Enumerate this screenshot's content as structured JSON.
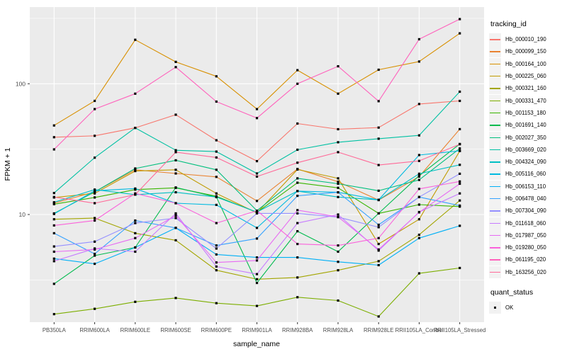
{
  "chart_data": {
    "type": "line",
    "title": "",
    "xlabel": "sample_name",
    "ylabel": "FPKM + 1",
    "y_scale": "log10",
    "y_major_ticks": [
      {
        "label": "100",
        "value": 100
      },
      {
        "label": "10",
        "value": 10
      }
    ],
    "y_minor_ticks": [
      316.2,
      31.62,
      3.162
    ],
    "grid": "on",
    "legend_position": "right",
    "panel_background": "#EBEBEB",
    "gridline_color": "#FFFFFF",
    "marker_color": "#000000",
    "categories": [
      "PB350LA",
      "RRIM600LA",
      "RRIM600LE",
      "RRIM600SE",
      "RRIM600PE",
      "RRIM901LA",
      "RRIM928BA",
      "RRIM928LA",
      "RRIM928LE",
      "RRII105LA_Control",
      "RRII105LA_Stressed"
    ],
    "legend_title": "tracking_id",
    "legend2_title": "quant_status",
    "quant_status_label": "OK",
    "series": [
      {
        "name": "Hb_000010_190",
        "color": "#F8766D",
        "values": [
          39,
          40,
          46,
          58,
          37,
          25.6,
          49.6,
          44.9,
          46.2,
          70,
          74
        ]
      },
      {
        "name": "Hb_000099_150",
        "color": "#EA8331",
        "values": [
          12.2,
          14.9,
          22,
          20.6,
          19.4,
          12.7,
          22.3,
          17.8,
          12.9,
          19.5,
          45
        ]
      },
      {
        "name": "Hb_000164_100",
        "color": "#D89000",
        "values": [
          48,
          74,
          217,
          147,
          114,
          64,
          127,
          84,
          128,
          148,
          243
        ]
      },
      {
        "name": "Hb_000225_060",
        "color": "#C09B00",
        "values": [
          13.5,
          14.5,
          21.5,
          22,
          14.5,
          10.3,
          22.1,
          18.9,
          5.95,
          9.2,
          30.6
        ]
      },
      {
        "name": "Hb_000321_160",
        "color": "#A3A500",
        "values": [
          9.2,
          9.4,
          7.2,
          6.35,
          3.75,
          3.2,
          3.3,
          3.75,
          4.4,
          7.0,
          12.8
        ]
      },
      {
        "name": "Hb_000331_470",
        "color": "#7CAE00",
        "values": [
          1.73,
          1.9,
          2.15,
          2.3,
          2.1,
          2.0,
          2.33,
          2.2,
          1.66,
          3.55,
          3.9
        ]
      },
      {
        "name": "Hb_001153_180",
        "color": "#39B600",
        "values": [
          12.0,
          13.5,
          15.5,
          16,
          13.8,
          10.4,
          17.5,
          16,
          10.2,
          11.9,
          11.5
        ]
      },
      {
        "name": "Hb_001691_140",
        "color": "#00BB4E",
        "values": [
          2.95,
          4.85,
          5.6,
          16.1,
          13.6,
          3.0,
          7.45,
          5.2,
          10.2,
          19.8,
          34.6
        ]
      },
      {
        "name": "Hb_002027_350",
        "color": "#00BF7D",
        "values": [
          10.2,
          14.9,
          22.5,
          26,
          22,
          10.7,
          18.9,
          17.2,
          15.2,
          18.4,
          32
        ]
      },
      {
        "name": "Hb_003669_020",
        "color": "#00C1A3",
        "values": [
          14.6,
          27.2,
          46,
          31,
          30.3,
          20.6,
          31.3,
          35.7,
          38,
          40.3,
          87
        ]
      },
      {
        "name": "Hb_004324_090",
        "color": "#00BFC4",
        "values": [
          12.4,
          15.5,
          14.2,
          14.8,
          13.6,
          10.45,
          15.1,
          13.6,
          12.95,
          20.5,
          24
        ]
      },
      {
        "name": "Hb_005116_060",
        "color": "#00BAE0",
        "values": [
          10.1,
          15.2,
          15.8,
          12.2,
          11.85,
          7.9,
          15.1,
          14.8,
          12.95,
          28.5,
          30.7
        ]
      },
      {
        "name": "Hb_006153_110",
        "color": "#00B0F6",
        "values": [
          4.6,
          4.2,
          5.6,
          7.9,
          4.95,
          4.7,
          4.7,
          4.35,
          4.1,
          6.6,
          8.2
        ]
      },
      {
        "name": "Hb_006478_040",
        "color": "#35A2FF",
        "values": [
          7.2,
          5.0,
          9.0,
          7.9,
          5.8,
          6.55,
          13.9,
          14.8,
          8.35,
          13.6,
          11.7
        ]
      },
      {
        "name": "Hb_007304_090",
        "color": "#9590FF",
        "values": [
          5.7,
          6.2,
          8.6,
          9.4,
          5.5,
          10.2,
          10.2,
          9.55,
          8.0,
          13.6,
          20.5
        ]
      },
      {
        "name": "Hb_011618_060",
        "color": "#C77CFF",
        "values": [
          4.4,
          5.5,
          5.2,
          10.2,
          4.0,
          3.5,
          8.6,
          10.0,
          5.3,
          10.45,
          14.5
        ]
      },
      {
        "name": "Hb_017987_050",
        "color": "#E76BF3",
        "values": [
          5.2,
          5.4,
          6.6,
          9.8,
          4.3,
          4.45,
          10.8,
          9.6,
          5.4,
          10.4,
          17.2
        ]
      },
      {
        "name": "Hb_019280_050",
        "color": "#FA62DB",
        "values": [
          8.25,
          9.0,
          14.5,
          12.2,
          8.6,
          10.7,
          5.95,
          5.8,
          6.6,
          15.7,
          17.9
        ]
      },
      {
        "name": "Hb_061195_020",
        "color": "#FF62BC",
        "values": [
          31.5,
          64,
          84,
          134,
          73,
          54.6,
          100,
          136,
          73.6,
          219,
          312
        ]
      },
      {
        "name": "Hb_163256_020",
        "color": "#FF6A98",
        "values": [
          13.6,
          12.2,
          14.2,
          30,
          27.3,
          19.5,
          24.9,
          30,
          23.9,
          25.7,
          34.5
        ]
      }
    ]
  }
}
